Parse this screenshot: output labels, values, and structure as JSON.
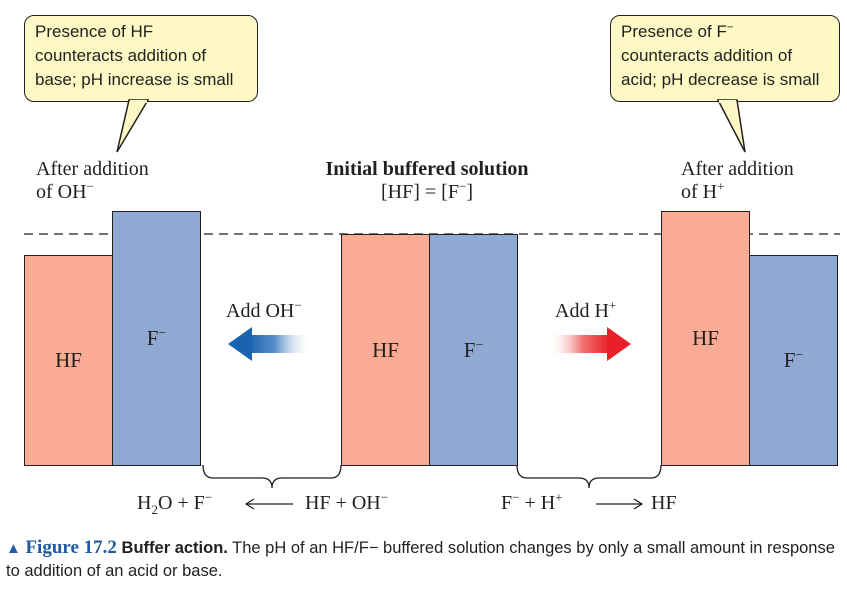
{
  "callout_left": {
    "line1": "Presence of HF",
    "line2": "counteracts addition of",
    "line3": "base; pH increase is small"
  },
  "callout_right": {
    "line1_prefix": "Presence of F",
    "line1_sup": "−",
    "line2": "counteracts addition of",
    "line3": "acid; pH decrease is small"
  },
  "panel_left": {
    "title_line1": "After addition",
    "title_line2_prefix": "of OH",
    "title_line2_sup": "−",
    "hf_label": "HF",
    "f_label": "F",
    "f_sup": "−",
    "hf_level": 0.91,
    "f_level": 1.1
  },
  "panel_center": {
    "title": "Initial buffered solution",
    "subtitle": "[HF] = [F",
    "subtitle_sup": "−",
    "subtitle_end": "]",
    "hf_label": "HF",
    "f_label": "F",
    "f_sup": "−",
    "hf_level": 1.0,
    "f_level": 1.0
  },
  "panel_right": {
    "title_line1": "After addition",
    "title_line2_prefix": "of H",
    "title_line2_sup": "+",
    "hf_label": "HF",
    "f_label": "F",
    "f_sup": "−",
    "hf_level": 1.1,
    "f_level": 0.91
  },
  "arrows": {
    "left_label": "Add OH",
    "left_sup": "−",
    "right_label": "Add H",
    "right_sup": "+",
    "left_color": "#1a63b0",
    "right_color": "#e8202a"
  },
  "reactions": {
    "left_p1": "H",
    "left_sub": "2",
    "left_p2": "O + F",
    "left_sup": "−",
    "left_reactants": "HF + OH",
    "left_reactants_sup": "−",
    "right_p1": "F",
    "right_sup1": "−",
    "right_p2": " + H",
    "right_sup2": "+",
    "right_product": "HF"
  },
  "caption": {
    "triangle": "▲",
    "figure": "Figure 17.2",
    "title": "Buffer action.",
    "text": " The pH of an HF/F− buffered solution changes by only a small amount in response to addition of an acid or base."
  },
  "colors": {
    "hf": "#f9ab95",
    "f_minus": "#8fa9d2",
    "callout": "#fdf8c4",
    "caption_accent": "#1f5aa0"
  }
}
